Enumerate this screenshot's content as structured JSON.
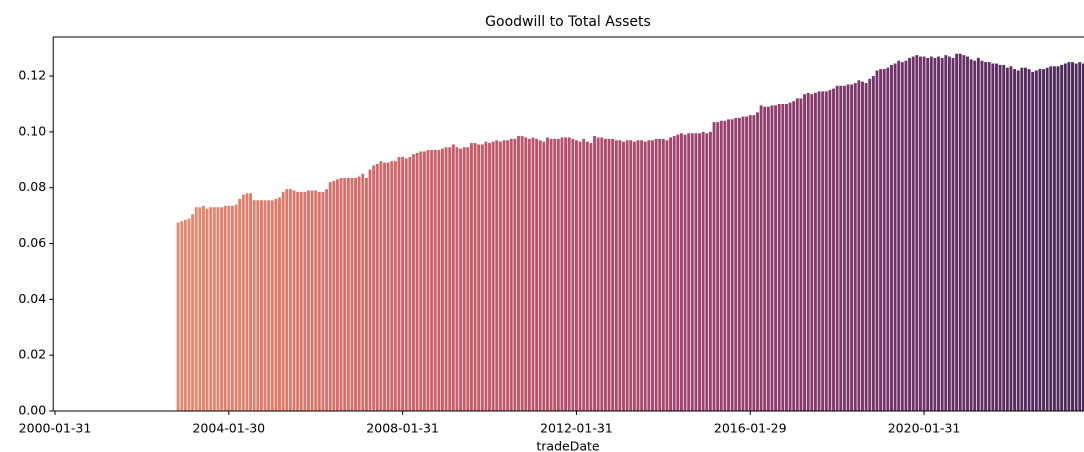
{
  "chart_data": {
    "type": "bar",
    "title": "Goodwill to Total Assets",
    "x_label": "tradeDate",
    "categories": [
      "2000-01-31",
      null,
      null,
      null,
      null,
      null,
      null,
      null,
      null,
      null,
      null,
      null,
      null,
      null,
      null,
      null,
      null,
      null,
      null,
      null,
      null,
      null,
      null,
      null,
      null,
      null,
      null,
      null,
      null,
      null,
      null,
      null,
      null,
      null,
      null,
      null,
      null,
      null,
      null,
      null,
      null,
      null,
      null,
      null,
      null,
      null,
      null,
      null,
      "2004-01-30",
      null,
      null,
      null,
      null,
      null,
      null,
      null,
      null,
      null,
      null,
      null,
      null,
      null,
      null,
      null,
      null,
      null,
      null,
      null,
      null,
      null,
      null,
      null,
      null,
      null,
      null,
      null,
      null,
      null,
      null,
      null,
      null,
      null,
      null,
      null,
      null,
      null,
      null,
      null,
      null,
      null,
      null,
      null,
      null,
      null,
      null,
      null,
      "2008-01-31",
      null,
      null,
      null,
      null,
      null,
      null,
      null,
      null,
      null,
      null,
      null,
      null,
      null,
      null,
      null,
      null,
      null,
      null,
      null,
      null,
      null,
      null,
      null,
      null,
      null,
      null,
      null,
      null,
      null,
      null,
      null,
      null,
      null,
      null,
      null,
      null,
      null,
      null,
      null,
      null,
      null,
      null,
      null,
      null,
      null,
      null,
      null,
      "2012-01-31",
      null,
      null,
      null,
      null,
      null,
      null,
      null,
      null,
      null,
      null,
      null,
      null,
      null,
      null,
      null,
      null,
      null,
      null,
      null,
      null,
      null,
      null,
      null,
      null,
      null,
      null,
      null,
      null,
      null,
      null,
      null,
      null,
      null,
      null,
      null,
      null,
      null,
      null,
      null,
      null,
      null,
      null,
      null,
      null,
      null,
      null,
      null,
      "2016-01-29",
      null,
      null,
      null,
      null,
      null,
      null,
      null,
      null,
      null,
      null,
      null,
      null,
      null,
      null,
      null,
      null,
      null,
      null,
      null,
      null,
      null,
      null,
      null,
      null,
      null,
      null,
      null,
      null,
      null,
      null,
      null,
      null,
      null,
      null,
      null,
      null,
      null,
      null,
      null,
      null,
      null,
      null,
      null,
      null,
      null,
      null,
      null,
      "2020-01-31",
      null,
      null,
      null,
      null,
      null,
      null,
      null,
      null,
      null,
      null,
      null,
      null,
      null,
      null,
      null,
      null,
      null,
      null,
      null,
      null,
      null,
      null,
      null,
      null,
      null,
      null,
      null,
      null,
      null,
      null,
      null,
      null,
      null,
      null,
      null,
      null,
      null,
      null,
      null,
      null,
      null,
      null,
      null,
      null
    ],
    "values": [
      null,
      null,
      null,
      null,
      null,
      null,
      null,
      null,
      null,
      null,
      null,
      null,
      null,
      null,
      null,
      null,
      null,
      null,
      null,
      null,
      null,
      null,
      null,
      null,
      null,
      null,
      null,
      null,
      null,
      null,
      null,
      null,
      null,
      null,
      0.0675,
      0.068,
      0.0685,
      0.069,
      0.0705,
      0.073,
      0.073,
      0.0735,
      0.0725,
      0.073,
      0.073,
      0.073,
      0.073,
      0.0735,
      0.0735,
      0.0735,
      0.074,
      0.076,
      0.0775,
      0.078,
      0.078,
      0.0755,
      0.0755,
      0.0755,
      0.0755,
      0.0755,
      0.0755,
      0.076,
      0.0765,
      0.0785,
      0.0795,
      0.0795,
      0.079,
      0.0785,
      0.0785,
      0.0785,
      0.079,
      0.079,
      0.079,
      0.0785,
      0.0785,
      0.0795,
      0.082,
      0.0825,
      0.083,
      0.0835,
      0.0835,
      0.0835,
      0.0835,
      0.0835,
      0.084,
      0.085,
      0.0835,
      0.0865,
      0.088,
      0.0885,
      0.0895,
      0.089,
      0.089,
      0.0895,
      0.0895,
      0.091,
      0.091,
      0.0905,
      0.091,
      0.092,
      0.0925,
      0.093,
      0.093,
      0.0935,
      0.0935,
      0.0935,
      0.0935,
      0.094,
      0.0945,
      0.0945,
      0.0955,
      0.0945,
      0.094,
      0.0945,
      0.0945,
      0.096,
      0.096,
      0.0955,
      0.0955,
      0.0965,
      0.096,
      0.0965,
      0.097,
      0.0965,
      0.097,
      0.097,
      0.0975,
      0.0975,
      0.0985,
      0.0985,
      0.098,
      0.0975,
      0.098,
      0.0975,
      0.097,
      0.0965,
      0.098,
      0.0975,
      0.0975,
      0.0975,
      0.098,
      0.098,
      0.098,
      0.0975,
      0.097,
      0.0965,
      0.0975,
      0.0965,
      0.096,
      0.0985,
      0.098,
      0.098,
      0.0975,
      0.0975,
      0.0975,
      0.097,
      0.097,
      0.0965,
      0.097,
      0.097,
      0.0965,
      0.097,
      0.097,
      0.0965,
      0.097,
      0.097,
      0.0975,
      0.0975,
      0.0975,
      0.097,
      0.098,
      0.0985,
      0.099,
      0.0995,
      0.099,
      0.0995,
      0.0995,
      0.0995,
      0.0995,
      0.1,
      0.0995,
      0.1,
      0.1035,
      0.1035,
      0.104,
      0.104,
      0.1045,
      0.1045,
      0.105,
      0.105,
      0.1055,
      0.1055,
      0.106,
      0.106,
      0.107,
      0.1095,
      0.109,
      0.109,
      0.1095,
      0.1095,
      0.11,
      0.11,
      0.11,
      0.1105,
      0.111,
      0.112,
      0.112,
      0.1135,
      0.114,
      0.1135,
      0.114,
      0.1145,
      0.1145,
      0.1145,
      0.115,
      0.1155,
      0.1165,
      0.1165,
      0.1165,
      0.117,
      0.117,
      0.1175,
      0.1185,
      0.118,
      0.1175,
      0.119,
      0.12,
      0.122,
      0.1225,
      0.1225,
      0.123,
      0.124,
      0.1245,
      0.1255,
      0.125,
      0.1255,
      0.1265,
      0.127,
      0.1275,
      0.127,
      0.127,
      0.1265,
      0.127,
      0.1265,
      0.127,
      0.1265,
      0.1275,
      0.127,
      0.1265,
      0.128,
      0.128,
      0.1275,
      0.127,
      0.126,
      0.1255,
      0.1265,
      0.1255,
      0.125,
      0.125,
      0.1245,
      0.1245,
      0.124,
      0.124,
      0.123,
      0.1235,
      0.1225,
      0.122,
      0.123,
      0.123,
      0.1225,
      0.1215,
      0.122,
      0.1225,
      0.1225,
      0.123,
      0.1235,
      0.1235,
      0.1235,
      0.124,
      0.1245,
      0.125,
      0.125,
      0.1245,
      0.125,
      0.1245
    ],
    "palette": [
      "#eba07a",
      "#df7c6b",
      "#c85a68",
      "#a3466e",
      "#76346a",
      "#4a2a5a"
    ],
    "ylim": [
      0,
      0.134
    ],
    "yticks": [
      {
        "value": 0,
        "label": "0.00"
      },
      {
        "value": 0.02,
        "label": "0.02"
      },
      {
        "value": 0.04,
        "label": "0.04"
      },
      {
        "value": 0.06,
        "label": "0.06"
      },
      {
        "value": 0.08,
        "label": "0.08"
      },
      {
        "value": 0.1,
        "label": "0.10"
      },
      {
        "value": 0.12,
        "label": "0.12"
      }
    ]
  }
}
